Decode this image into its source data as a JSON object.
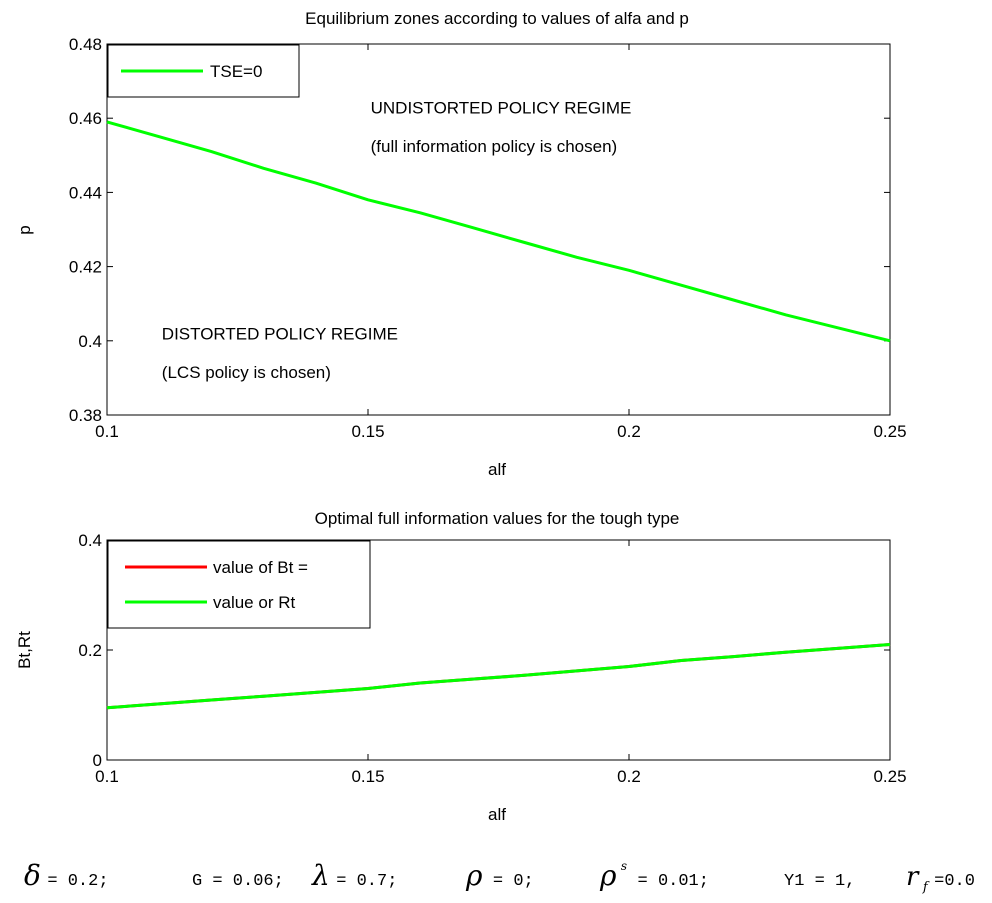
{
  "charts": [
    {
      "type": "line",
      "title": "Equilibrium zones according to values of alfa and p",
      "xlabel": "alf",
      "ylabel": "p",
      "xlim": [
        0.1,
        0.25
      ],
      "ylim": [
        0.38,
        0.48
      ],
      "xticks": [
        "0.1",
        "0.15",
        "0.2",
        "0.25"
      ],
      "yticks": [
        "0.38",
        "0.4",
        "0.42",
        "0.44",
        "0.46",
        "0.48"
      ],
      "legend_position": "top-left",
      "series": [
        {
          "name": "TSE=0",
          "color": "#00ff00",
          "x": [
            0.1,
            0.11,
            0.12,
            0.13,
            0.14,
            0.15,
            0.16,
            0.17,
            0.18,
            0.19,
            0.2,
            0.21,
            0.22,
            0.23,
            0.24,
            0.25
          ],
          "y": [
            0.459,
            0.455,
            0.451,
            0.4465,
            0.4425,
            0.438,
            0.4345,
            0.4305,
            0.4265,
            0.4225,
            0.419,
            0.415,
            0.411,
            0.407,
            0.4035,
            0.4
          ]
        }
      ],
      "annotations": [
        {
          "text": "UNDISTORTED POLICY REGIME",
          "x": 0.1505,
          "y": 0.4613
        },
        {
          "text": "(full information policy is chosen)",
          "x": 0.1505,
          "y": 0.4509
        },
        {
          "text": "DISTORTED POLICY REGIME",
          "x": 0.1105,
          "y": 0.4004
        },
        {
          "text": "(LCS policy is chosen)",
          "x": 0.1105,
          "y": 0.39
        }
      ]
    },
    {
      "type": "line",
      "title": "Optimal full information values for the tough type",
      "xlabel": "alf",
      "ylabel": "Bt,Rt",
      "xlim": [
        0.1,
        0.25
      ],
      "ylim": [
        0,
        0.4
      ],
      "xticks": [
        "0.1",
        "0.15",
        "0.2",
        "0.25"
      ],
      "yticks": [
        "0",
        "0.2",
        "0.4"
      ],
      "legend_position": "top-left",
      "series": [
        {
          "name": "value of Bt =",
          "color": "#ff0000",
          "x": [
            0.1,
            0.11,
            0.12,
            0.13,
            0.14,
            0.15,
            0.16,
            0.17,
            0.18,
            0.19,
            0.2,
            0.21,
            0.22,
            0.23,
            0.24,
            0.25
          ],
          "y": [
            0.095,
            0.102,
            0.109,
            0.116,
            0.123,
            0.13,
            0.14,
            0.147,
            0.154,
            0.162,
            0.17,
            0.181,
            0.188,
            0.196,
            0.203,
            0.21
          ]
        },
        {
          "name": "value or Rt",
          "color": "#00ff00",
          "x": [
            0.1,
            0.11,
            0.12,
            0.13,
            0.14,
            0.15,
            0.16,
            0.17,
            0.18,
            0.19,
            0.2,
            0.21,
            0.22,
            0.23,
            0.24,
            0.25
          ],
          "y": [
            0.095,
            0.102,
            0.109,
            0.116,
            0.123,
            0.13,
            0.14,
            0.147,
            0.154,
            0.162,
            0.17,
            0.181,
            0.188,
            0.196,
            0.203,
            0.21
          ]
        }
      ]
    }
  ],
  "parameters": {
    "delta": {
      "symbol": "δ",
      "rest": "= 0.2;"
    },
    "g": {
      "text": "G = 0.06;"
    },
    "lambda": {
      "symbol": "λ",
      "rest": "= 0.7;"
    },
    "rho": {
      "symbol": "ρ",
      "rest": "= 0;"
    },
    "rho_s": {
      "symbol": "ρ",
      "sup": "s",
      "rest": "= 0.01;"
    },
    "y1": {
      "text": "Y1 = 1,"
    },
    "r_f": {
      "symbol": "r",
      "sub": "f",
      "rest": "=0.0"
    }
  }
}
